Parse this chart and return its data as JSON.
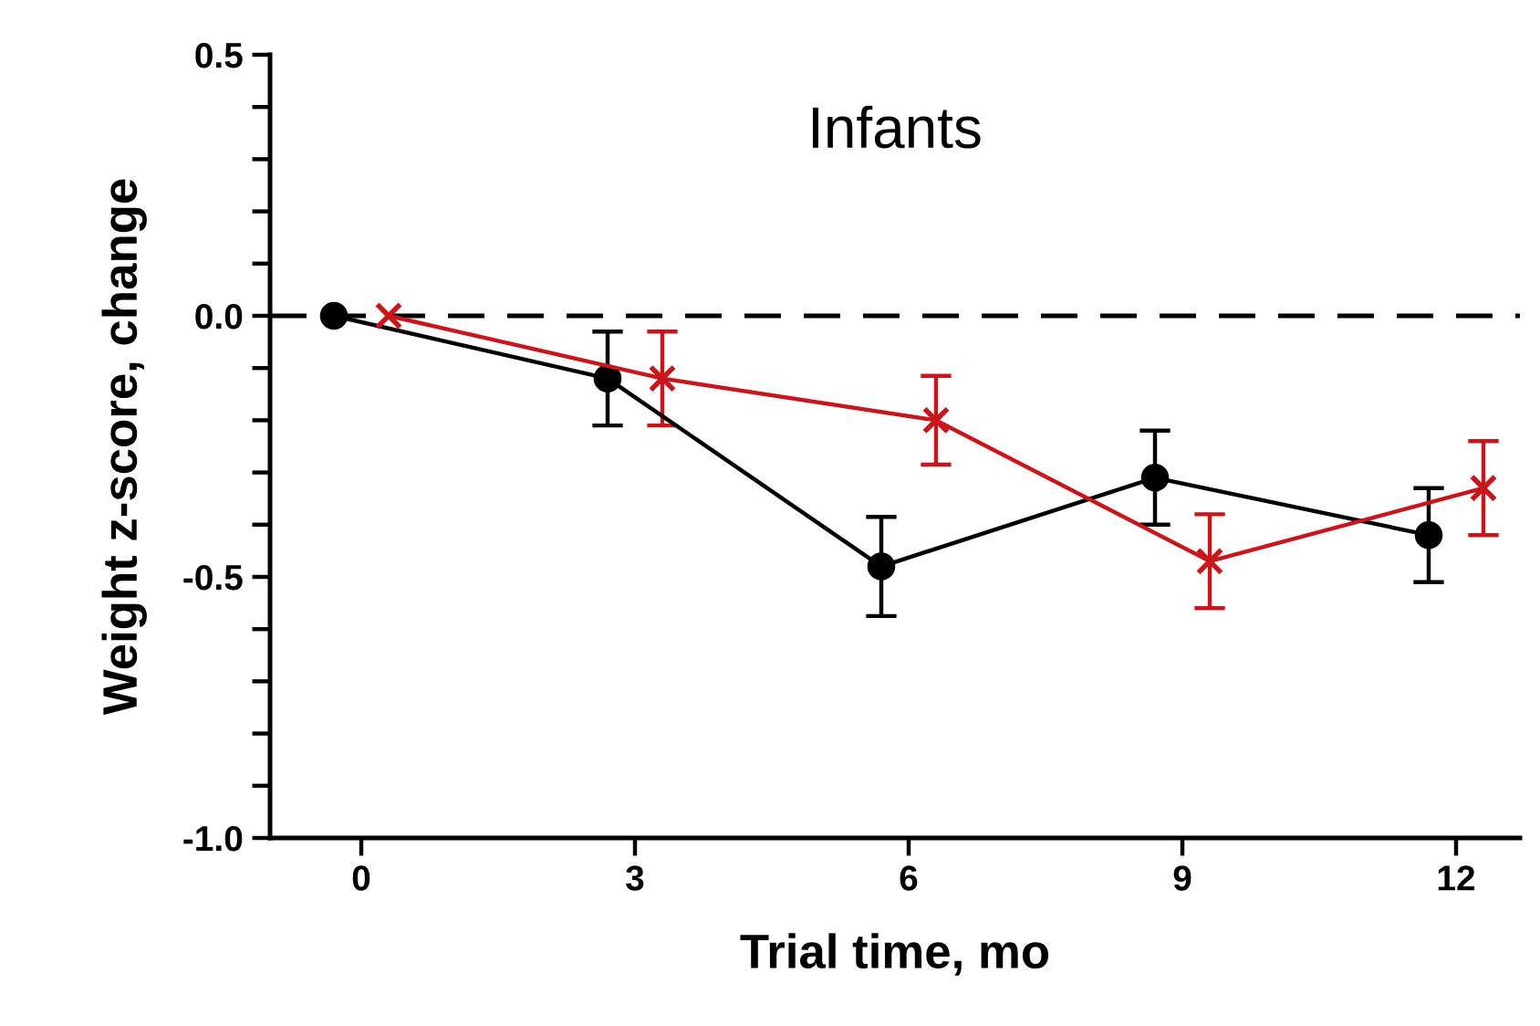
{
  "chart_data": {
    "type": "line",
    "title": "Infants",
    "xlabel": "Trial time, mo",
    "ylabel": "Weight z-score, change",
    "series": [
      {
        "color": "#000000",
        "marker": "circle",
        "x": [
          -0.3,
          2.7,
          5.7,
          8.7,
          11.7
        ],
        "values": [
          0.0,
          -0.12,
          -0.48,
          -0.31,
          -0.42
        ],
        "errors": [
          null,
          0.09,
          0.095,
          0.09,
          0.09
        ]
      },
      {
        "color": "#c8161d",
        "marker": "cross",
        "x": [
          0.3,
          3.3,
          6.3,
          9.3,
          12.3
        ],
        "values": [
          0.0,
          -0.12,
          -0.2,
          -0.47,
          -0.33
        ],
        "errors": [
          null,
          0.09,
          0.085,
          0.09,
          0.09
        ]
      }
    ],
    "xlim": [
      -1,
      12.7
    ],
    "xticks": [
      0,
      3,
      6,
      9,
      12
    ],
    "ylim": [
      -1.0,
      0.5
    ],
    "yticks": [
      {
        "value": -1.0,
        "label": "-1.0"
      },
      {
        "value": -0.9,
        "label": null
      },
      {
        "value": -0.8,
        "label": null
      },
      {
        "value": -0.7,
        "label": null
      },
      {
        "value": -0.6,
        "label": null
      },
      {
        "value": -0.5,
        "label": "-0.5"
      },
      {
        "value": -0.4,
        "label": null
      },
      {
        "value": -0.3,
        "label": null
      },
      {
        "value": -0.2,
        "label": null
      },
      {
        "value": -0.1,
        "label": null
      },
      {
        "value": 0.0,
        "label": "0.0"
      },
      {
        "value": 0.1,
        "label": null
      },
      {
        "value": 0.2,
        "label": null
      },
      {
        "value": 0.3,
        "label": null
      },
      {
        "value": 0.4,
        "label": null
      },
      {
        "value": 0.5,
        "label": "0.5"
      }
    ],
    "ref_lines": [
      {
        "axis": "y",
        "value": 0.0,
        "color": "#000000",
        "line_style": "dashed"
      }
    ]
  }
}
